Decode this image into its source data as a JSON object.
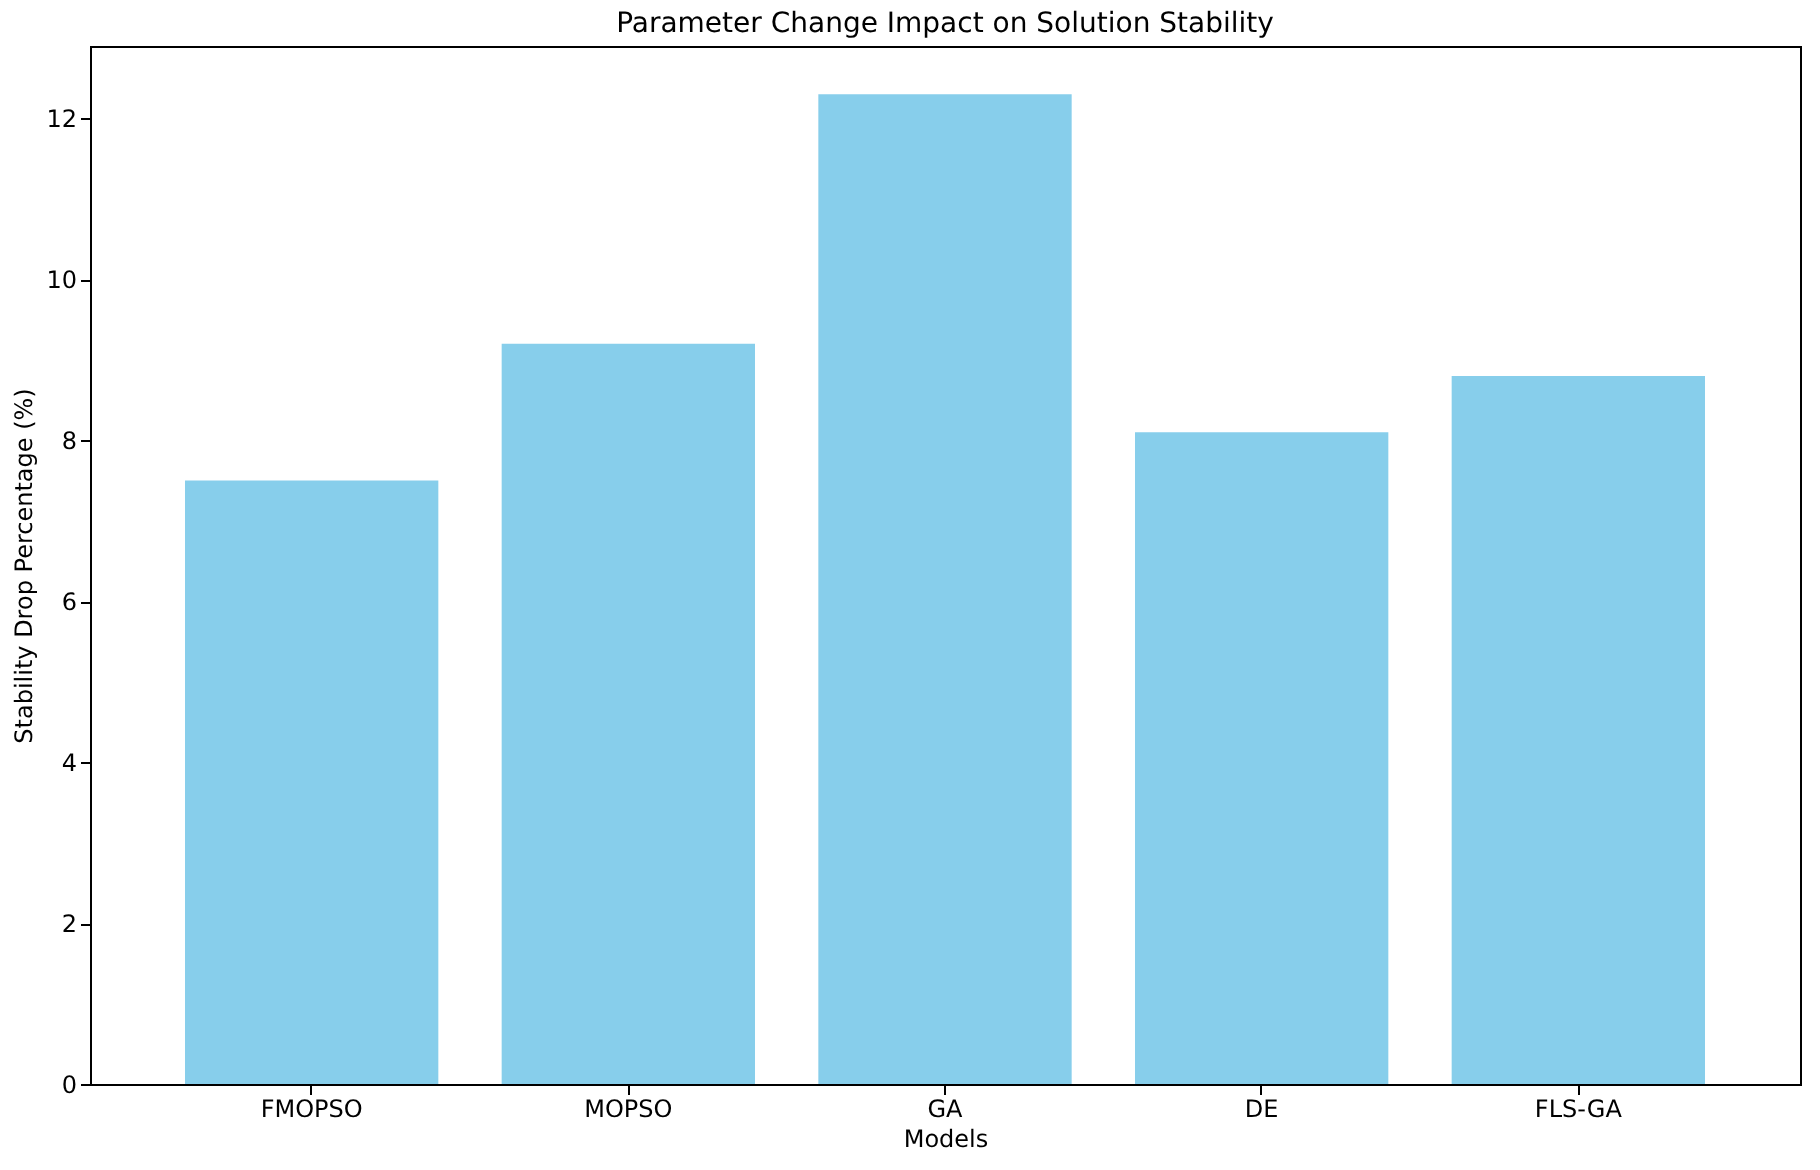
{
  "chart_data": {
    "type": "bar",
    "title": "Parameter Change Impact on Solution Stability",
    "xlabel": "Models",
    "ylabel": "Stability Drop Percentage (%)",
    "categories": [
      "FMOPSO",
      "MOPSO",
      "GA",
      "DE",
      "FLS-GA"
    ],
    "values": [
      7.5,
      9.2,
      12.3,
      8.1,
      8.8
    ],
    "color": "#87ceeb",
    "ylim": [
      0,
      12.9
    ],
    "yticks": [
      0,
      2,
      4,
      6,
      8,
      10,
      12
    ],
    "grid": false
  }
}
